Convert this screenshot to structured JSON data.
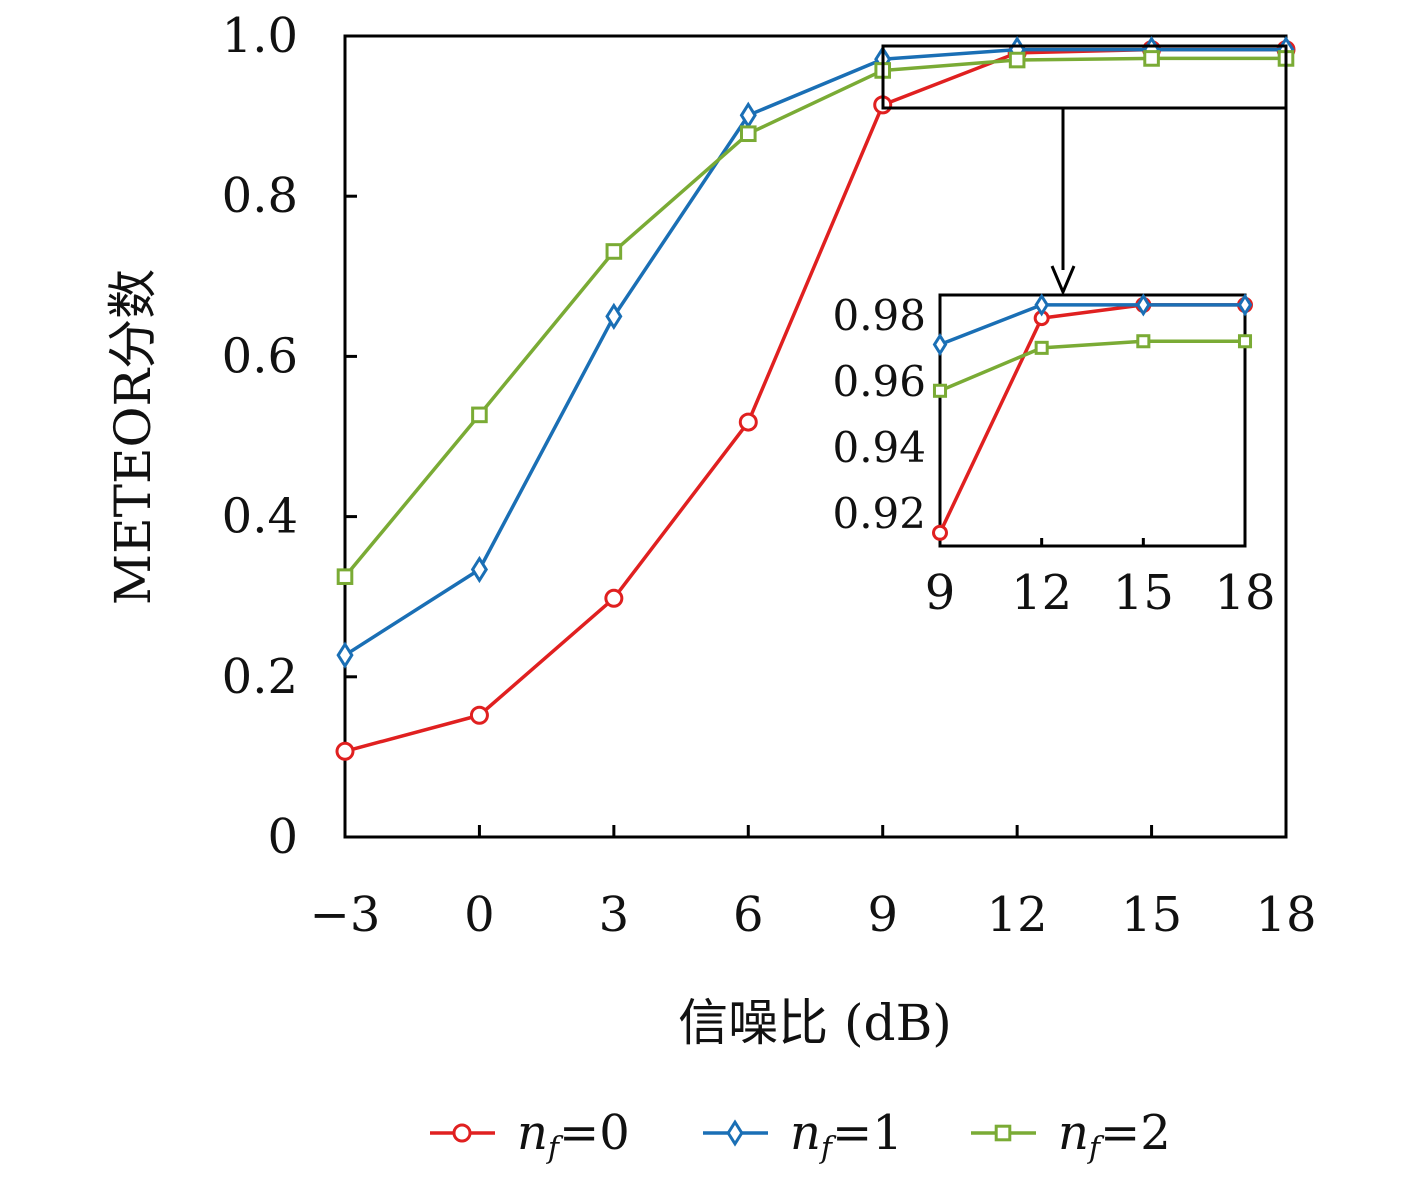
{
  "chart_data": [
    {
      "type": "line",
      "title": "",
      "xlabel": "信噪比 (dB)",
      "ylabel": "METEOR分数",
      "x": [
        -3,
        0,
        3,
        6,
        9,
        12,
        15,
        18
      ],
      "x_tick_labels": [
        "−3",
        "0",
        "3",
        "6",
        "9",
        "12",
        "15",
        "18"
      ],
      "y_tick_labels": [
        "0",
        "0.2",
        "0.4",
        "0.6",
        "0.8",
        "1.0"
      ],
      "xlim": [
        -3,
        18
      ],
      "ylim": [
        0,
        1.0
      ],
      "grid": false,
      "legend_position": "bottom",
      "series": [
        {
          "name_var": "n",
          "name_sub": "f",
          "name_value": "=0",
          "color": "#e02020",
          "marker": "circle",
          "values": [
            0.107,
            0.152,
            0.298,
            0.518,
            0.914,
            0.979,
            0.983,
            0.983
          ]
        },
        {
          "name_var": "n",
          "name_sub": "f",
          "name_value": "=1",
          "color": "#1a6fb5",
          "marker": "diamond",
          "values": [
            0.227,
            0.334,
            0.65,
            0.901,
            0.971,
            0.983,
            0.983,
            0.983
          ]
        },
        {
          "name_var": "n",
          "name_sub": "f",
          "name_value": "=2",
          "color": "#7aab35",
          "marker": "square",
          "values": [
            0.325,
            0.527,
            0.731,
            0.878,
            0.957,
            0.97,
            0.972,
            0.972
          ]
        }
      ]
    },
    {
      "type": "line",
      "role": "inset",
      "x": [
        9,
        12,
        15,
        18
      ],
      "x_tick_labels": [
        "9",
        "12",
        "15",
        "18"
      ],
      "y_tick_labels": [
        "0.92",
        "0.94",
        "0.96",
        "0.98"
      ],
      "xlim": [
        9,
        18
      ],
      "ylim": [
        0.91,
        0.986
      ],
      "grid": false,
      "series": [
        {
          "color": "#e02020",
          "marker": "circle",
          "values": [
            0.914,
            0.979,
            0.983,
            0.983
          ]
        },
        {
          "color": "#1a6fb5",
          "marker": "diamond",
          "values": [
            0.971,
            0.983,
            0.983,
            0.983
          ]
        },
        {
          "color": "#7aab35",
          "marker": "square",
          "values": [
            0.957,
            0.97,
            0.972,
            0.972
          ]
        }
      ]
    }
  ]
}
